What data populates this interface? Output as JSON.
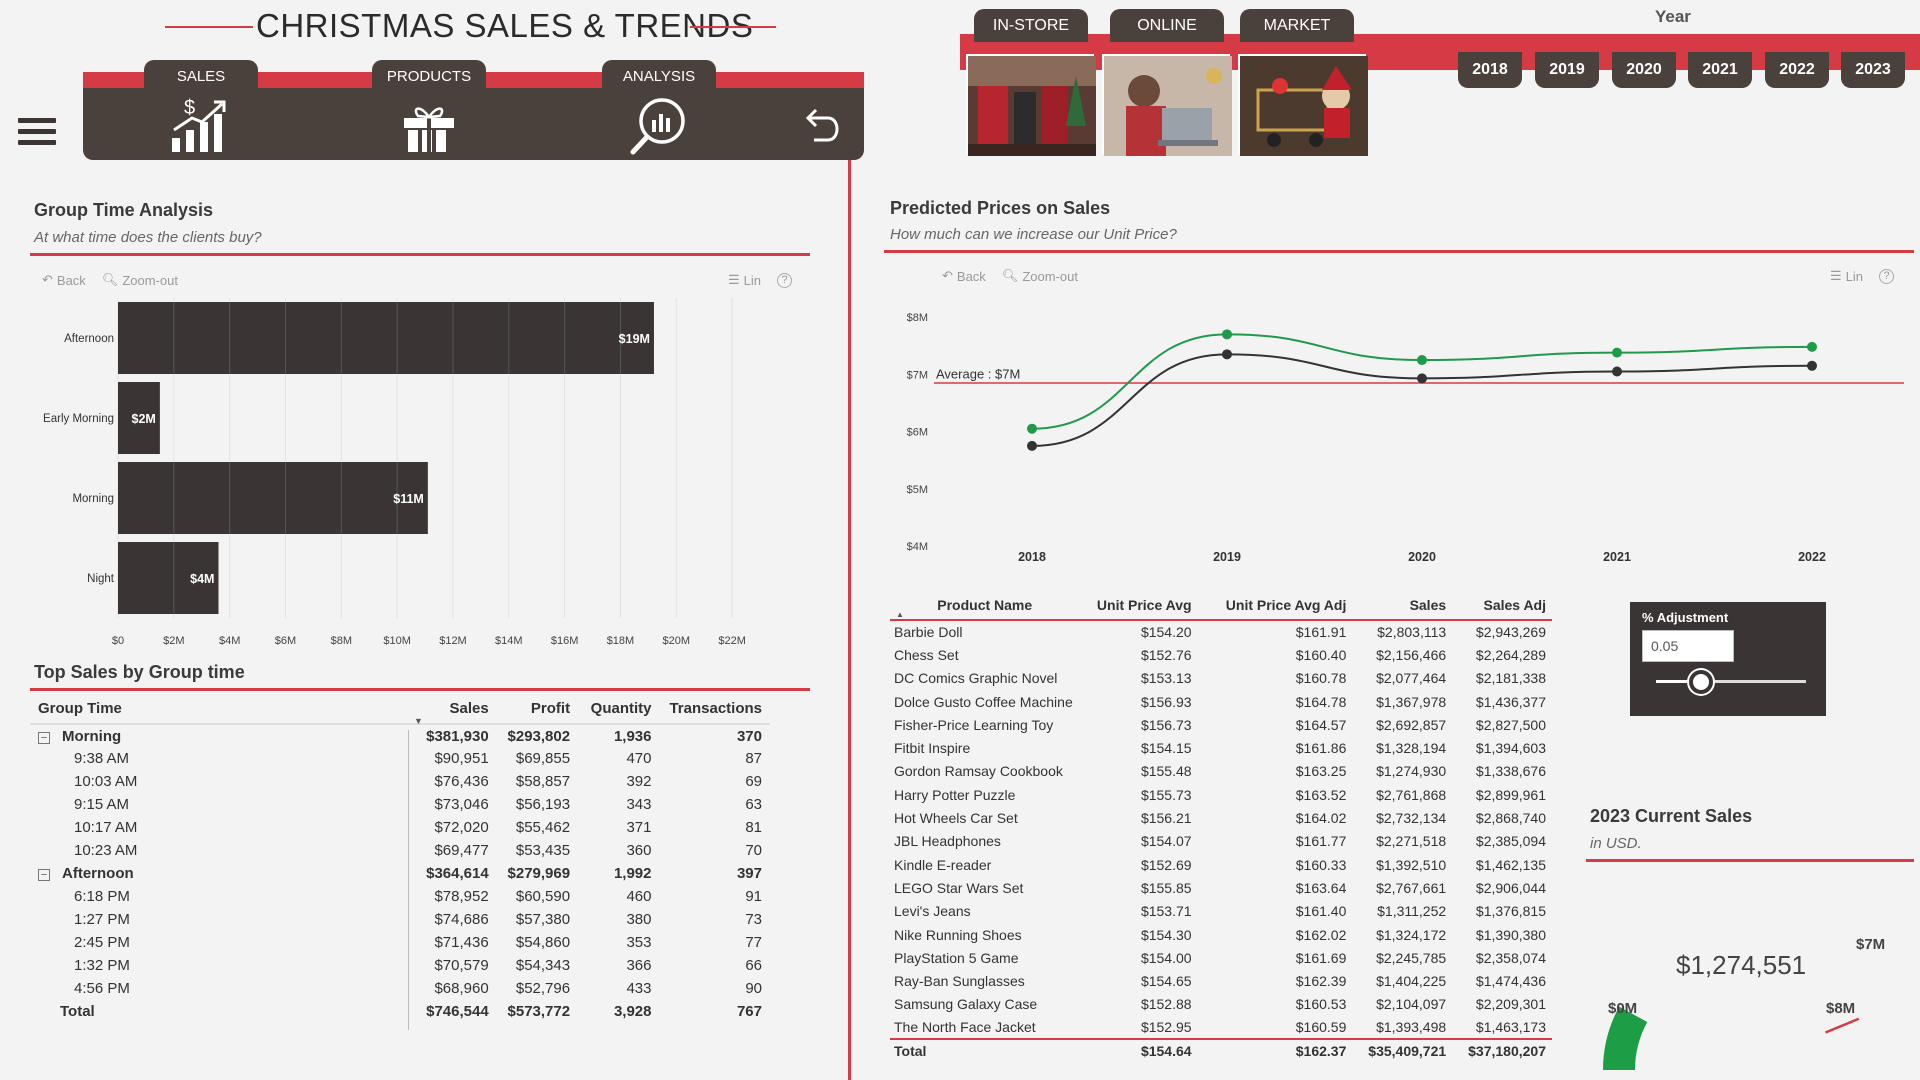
{
  "header": {
    "title": "CHRISTMAS SALES & TRENDS",
    "nav_tabs": [
      {
        "label": "SALES",
        "icon": "sales-growth-icon"
      },
      {
        "label": "PRODUCTS",
        "icon": "gift-chart-icon"
      },
      {
        "label": "ANALYSIS",
        "icon": "magnifier-chart-icon"
      }
    ],
    "back_icon": "undo-arrow-icon",
    "channels": [
      {
        "label": "IN-STORE",
        "image": "store-rack-photo"
      },
      {
        "label": "ONLINE",
        "image": "laptop-shopper-photo"
      },
      {
        "label": "MARKET",
        "image": "santa-cart-photo"
      }
    ],
    "year_label": "Year",
    "years": [
      "2018",
      "2019",
      "2020",
      "2021",
      "2022",
      "2023"
    ]
  },
  "group_time": {
    "title": "Group Time Analysis",
    "subtitle": "At what time does the clients buy?",
    "toolbar": {
      "back": "Back",
      "zoom": "Zoom-out",
      "lin": "Lin"
    }
  },
  "predicted": {
    "title": "Predicted Prices on Sales",
    "subtitle": "How much can we increase our Unit Price?",
    "toolbar": {
      "back": "Back",
      "zoom": "Zoom-out",
      "lin": "Lin"
    },
    "average_label": "Average : $7M"
  },
  "top_sales": {
    "title": "Top Sales by Group time",
    "columns": [
      "Group Time",
      "Sales",
      "Profit",
      "Quantity",
      "Transactions"
    ],
    "groups": [
      {
        "name": "Morning",
        "sales": "$381,930",
        "profit": "$293,802",
        "quantity": "1,936",
        "transactions": "370",
        "rows": [
          [
            "9:38 AM",
            "$90,951",
            "$69,855",
            "470",
            "87"
          ],
          [
            "10:03 AM",
            "$76,436",
            "$58,857",
            "392",
            "69"
          ],
          [
            "9:15 AM",
            "$73,046",
            "$56,193",
            "343",
            "63"
          ],
          [
            "10:17 AM",
            "$72,020",
            "$55,462",
            "371",
            "81"
          ],
          [
            "10:23 AM",
            "$69,477",
            "$53,435",
            "360",
            "70"
          ]
        ]
      },
      {
        "name": "Afternoon",
        "sales": "$364,614",
        "profit": "$279,969",
        "quantity": "1,992",
        "transactions": "397",
        "rows": [
          [
            "6:18 PM",
            "$78,952",
            "$60,590",
            "460",
            "91"
          ],
          [
            "1:27 PM",
            "$74,686",
            "$57,380",
            "380",
            "73"
          ],
          [
            "2:45 PM",
            "$71,436",
            "$54,860",
            "353",
            "77"
          ],
          [
            "1:32 PM",
            "$70,579",
            "$54,343",
            "366",
            "66"
          ],
          [
            "4:56 PM",
            "$68,960",
            "$52,796",
            "433",
            "90"
          ]
        ]
      }
    ],
    "total": [
      "Total",
      "$746,544",
      "$573,772",
      "3,928",
      "767"
    ]
  },
  "products": {
    "columns": [
      "Product Name",
      "Unit Price Avg",
      "Unit Price Avg Adj",
      "Sales",
      "Sales Adj"
    ],
    "rows": [
      [
        "Barbie Doll",
        "$154.20",
        "$161.91",
        "$2,803,113",
        "$2,943,269"
      ],
      [
        "Chess Set",
        "$152.76",
        "$160.40",
        "$2,156,466",
        "$2,264,289"
      ],
      [
        "DC Comics Graphic Novel",
        "$153.13",
        "$160.78",
        "$2,077,464",
        "$2,181,338"
      ],
      [
        "Dolce Gusto Coffee Machine",
        "$156.93",
        "$164.78",
        "$1,367,978",
        "$1,436,377"
      ],
      [
        "Fisher-Price Learning Toy",
        "$156.73",
        "$164.57",
        "$2,692,857",
        "$2,827,500"
      ],
      [
        "Fitbit Inspire",
        "$154.15",
        "$161.86",
        "$1,328,194",
        "$1,394,603"
      ],
      [
        "Gordon Ramsay Cookbook",
        "$155.48",
        "$163.25",
        "$1,274,930",
        "$1,338,676"
      ],
      [
        "Harry Potter Puzzle",
        "$155.73",
        "$163.52",
        "$2,761,868",
        "$2,899,961"
      ],
      [
        "Hot Wheels Car Set",
        "$156.21",
        "$164.02",
        "$2,732,134",
        "$2,868,740"
      ],
      [
        "JBL Headphones",
        "$154.07",
        "$161.77",
        "$2,271,518",
        "$2,385,094"
      ],
      [
        "Kindle E-reader",
        "$152.69",
        "$160.33",
        "$1,392,510",
        "$1,462,135"
      ],
      [
        "LEGO Star Wars Set",
        "$155.85",
        "$163.64",
        "$2,767,661",
        "$2,906,044"
      ],
      [
        "Levi's Jeans",
        "$153.71",
        "$161.40",
        "$1,311,252",
        "$1,376,815"
      ],
      [
        "Nike Running Shoes",
        "$154.30",
        "$162.02",
        "$1,324,172",
        "$1,390,380"
      ],
      [
        "PlayStation 5 Game",
        "$154.00",
        "$161.69",
        "$2,245,785",
        "$2,358,074"
      ],
      [
        "Ray-Ban Sunglasses",
        "$154.65",
        "$162.39",
        "$1,404,225",
        "$1,474,436"
      ],
      [
        "Samsung Galaxy Case",
        "$152.88",
        "$160.53",
        "$2,104,097",
        "$2,209,301"
      ],
      [
        "The North Face Jacket",
        "$152.95",
        "$160.59",
        "$1,393,498",
        "$1,463,173"
      ]
    ],
    "total": [
      "Total",
      "$154.64",
      "$162.37",
      "$35,409,721",
      "$37,180,207"
    ]
  },
  "adjustment": {
    "label": "% Adjustment",
    "value": "0.05",
    "slider_fraction": 0.3
  },
  "current_sales": {
    "title": "2023 Current Sales",
    "subtitle": "in USD.",
    "value_label": "$1,274,551",
    "min_label": "$0M",
    "max_label": "$8M",
    "target_label": "$7M",
    "value": 1274551,
    "min": 0,
    "max": 8000000,
    "target": 7000000
  },
  "chart_data": [
    {
      "type": "bar",
      "orientation": "horizontal",
      "categories": [
        "Afternoon",
        "Early Morning",
        "Morning",
        "Night"
      ],
      "values": [
        19.2,
        1.5,
        11.1,
        3.6
      ],
      "data_labels": [
        "$19M",
        "$2M",
        "$11M",
        "$4M"
      ],
      "x_ticks": [
        "$0",
        "$2M",
        "$4M",
        "$6M",
        "$8M",
        "$10M",
        "$12M",
        "$14M",
        "$16M",
        "$18M",
        "$20M",
        "$22M"
      ],
      "xlim": [
        0,
        23.5
      ],
      "grid": true,
      "color": "#3a3534"
    },
    {
      "type": "line",
      "x": [
        "2018",
        "2019",
        "2020",
        "2021",
        "2022"
      ],
      "y_ticks": [
        "$8M",
        "$7M",
        "$6M",
        "$5M",
        "$4M"
      ],
      "ylim": [
        4,
        8
      ],
      "series": [
        {
          "values": [
            6.05,
            7.7,
            7.25,
            7.38,
            7.48
          ],
          "color": "#1f9a4a"
        },
        {
          "values": [
            5.75,
            7.35,
            6.93,
            7.05,
            7.15
          ],
          "color": "#333333"
        }
      ],
      "average": 6.85,
      "average_color": "#d63a45"
    }
  ]
}
